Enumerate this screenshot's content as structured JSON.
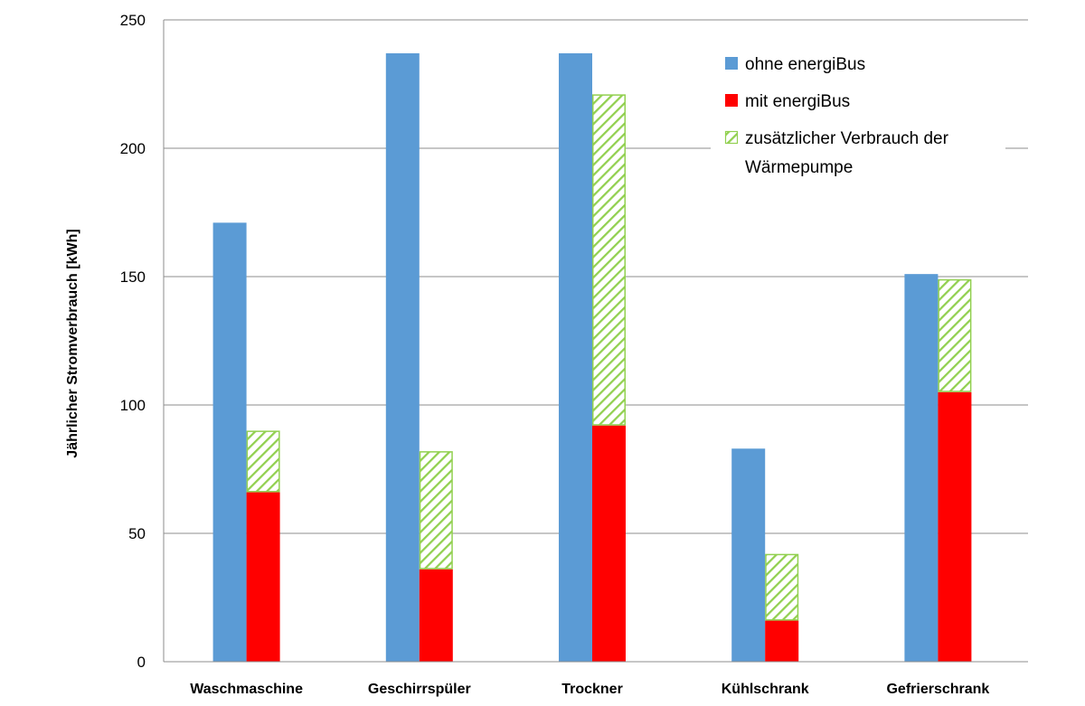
{
  "chart_data": {
    "type": "bar",
    "title": "",
    "xlabel": "",
    "ylabel": "Jährlicher Stromverbrauch  [kWh]",
    "ylim": [
      0,
      250
    ],
    "yticks": [
      0,
      50,
      100,
      150,
      200,
      250
    ],
    "grid": true,
    "legend_position": "top-right",
    "categories": [
      "Waschmaschine",
      "Geschirrspüler",
      "Trockner",
      "Kühlschrank",
      "Gefrierschrank"
    ],
    "series": [
      {
        "name": "ohne energiBus",
        "color": "#5b9bd5",
        "stack": "a",
        "values": [
          171,
          237,
          237,
          83,
          151
        ]
      },
      {
        "name": "mit energiBus",
        "color": "#ff0000",
        "stack": "b",
        "values": [
          66,
          36,
          92,
          16,
          105
        ]
      },
      {
        "name": "zusätzlicher Verbrauch der Wärmepumpe",
        "color": "#92d050",
        "pattern": "hatch",
        "stack": "b",
        "values": [
          24,
          46,
          129,
          26,
          44
        ]
      }
    ],
    "legend": {
      "labels": [
        "ohne energiBus",
        "mit energiBus",
        "zusätzlicher Verbrauch der",
        "Wärmepumpe"
      ]
    }
  }
}
